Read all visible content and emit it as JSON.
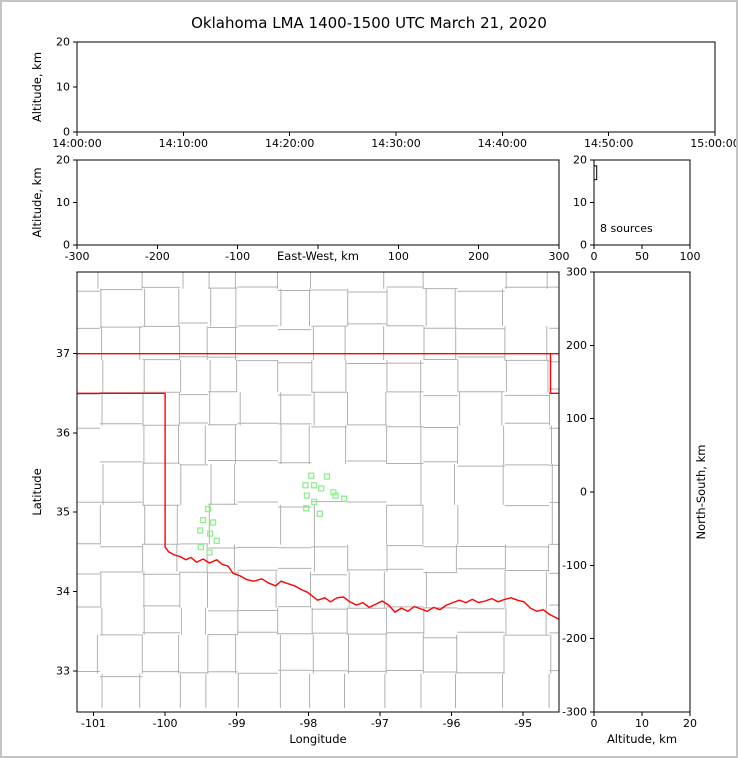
{
  "title": "Oklahoma LMA 1400-1500 UTC March 21, 2020",
  "colors": {
    "axis": "#000000",
    "state_border": "#ff0000",
    "county_line": "#b0b0b0",
    "station_marker": "#90ee90",
    "figure_border": "#c4c4c4",
    "background": "#ffffff"
  },
  "chart_data": [
    {
      "id": "time_height",
      "type": "scatter",
      "ylabel": "Altitude, km",
      "xlim": [
        0,
        3600
      ],
      "ylim": [
        0,
        20
      ],
      "xticks": [
        0,
        600,
        1200,
        1800,
        2400,
        3000,
        3600
      ],
      "xtick_labels": [
        "14:00:00",
        "14:10:00",
        "14:20:00",
        "14:30:00",
        "14:40:00",
        "14:50:00",
        "15:00:00"
      ],
      "yticks": [
        0,
        10,
        20
      ],
      "ytick_labels": [
        "0",
        "10",
        "20"
      ],
      "points": []
    },
    {
      "id": "ew_height",
      "type": "scatter",
      "xlabel": "East-West, km",
      "xlabel_inline_at": 0,
      "ylabel": "Altitude, km",
      "xlim": [
        -300,
        300
      ],
      "ylim": [
        0,
        20
      ],
      "xticks": [
        -300,
        -200,
        -100,
        0,
        100,
        200,
        300
      ],
      "xtick_labels": [
        "-300",
        "-200",
        "-100",
        "",
        "100",
        "200",
        "300"
      ],
      "yticks": [
        0,
        10,
        20
      ],
      "ytick_labels": [
        "0",
        "10",
        "20"
      ],
      "points": []
    },
    {
      "id": "alt_histogram",
      "type": "line",
      "annotation": "8 sources",
      "xlim": [
        0,
        100
      ],
      "ylim": [
        0,
        20
      ],
      "xticks": [
        0,
        50,
        100
      ],
      "xtick_labels": [
        "0",
        "50",
        "100"
      ],
      "yticks": [
        0,
        10,
        20
      ],
      "ytick_labels": [
        "0",
        "10",
        "20"
      ],
      "histogram_profile": [
        [
          0,
          18.6
        ],
        [
          2.8,
          18.6
        ],
        [
          2.8,
          15.4
        ],
        [
          0,
          15.4
        ]
      ]
    },
    {
      "id": "plan_view",
      "type": "scatter",
      "xlabel": "Longitude",
      "ylabel": "Latitude",
      "xlim": [
        -101.23,
        -94.5
      ],
      "ylim": [
        32.48,
        38.03
      ],
      "xticks": [
        -101,
        -100,
        -99,
        -98,
        -97,
        -96,
        -95
      ],
      "xtick_labels": [
        "-101",
        "-100",
        "-99",
        "-98",
        "-97",
        "-96",
        "-95"
      ],
      "yticks": [
        33,
        34,
        35,
        36,
        37
      ],
      "ytick_labels": [
        "33",
        "34",
        "35",
        "36",
        "37"
      ],
      "stations": [
        [
          -99.4,
          35.04
        ],
        [
          -99.47,
          34.9
        ],
        [
          -99.33,
          34.87
        ],
        [
          -99.51,
          34.77
        ],
        [
          -99.37,
          34.73
        ],
        [
          -99.28,
          34.64
        ],
        [
          -99.5,
          34.56
        ],
        [
          -99.38,
          34.49
        ],
        [
          -97.96,
          35.46
        ],
        [
          -97.74,
          35.45
        ],
        [
          -98.04,
          35.34
        ],
        [
          -97.92,
          35.34
        ],
        [
          -97.82,
          35.3
        ],
        [
          -97.65,
          35.25
        ],
        [
          -98.02,
          35.21
        ],
        [
          -97.62,
          35.21
        ],
        [
          -97.5,
          35.17
        ],
        [
          -97.92,
          35.13
        ],
        [
          -98.03,
          35.05
        ],
        [
          -97.84,
          34.98
        ]
      ],
      "state_border_segments": [
        [
          [
            -101.23,
            37.0
          ],
          [
            -94.5,
            37.0
          ]
        ],
        [
          [
            -94.618,
            37.0
          ],
          [
            -94.618,
            36.5
          ],
          [
            -94.5,
            36.5
          ]
        ],
        [
          [
            -101.23,
            36.5
          ],
          [
            -100.0,
            36.5
          ],
          [
            -100.0,
            34.56
          ],
          [
            -99.95,
            34.5
          ],
          [
            -99.87,
            34.46
          ],
          [
            -99.79,
            34.44
          ],
          [
            -99.71,
            34.4
          ],
          [
            -99.64,
            34.43
          ],
          [
            -99.56,
            34.37
          ],
          [
            -99.47,
            34.41
          ],
          [
            -99.38,
            34.36
          ],
          [
            -99.28,
            34.4
          ],
          [
            -99.2,
            34.34
          ],
          [
            -99.12,
            34.32
          ],
          [
            -99.05,
            34.23
          ],
          [
            -98.96,
            34.2
          ],
          [
            -98.86,
            34.15
          ],
          [
            -98.76,
            34.13
          ],
          [
            -98.65,
            34.16
          ],
          [
            -98.56,
            34.11
          ],
          [
            -98.46,
            34.07
          ],
          [
            -98.38,
            34.13
          ],
          [
            -98.29,
            34.1
          ],
          [
            -98.19,
            34.07
          ],
          [
            -98.09,
            34.02
          ],
          [
            -98.01,
            33.99
          ],
          [
            -97.94,
            33.94
          ],
          [
            -97.87,
            33.89
          ],
          [
            -97.77,
            33.92
          ],
          [
            -97.69,
            33.87
          ],
          [
            -97.6,
            33.92
          ],
          [
            -97.51,
            33.93
          ],
          [
            -97.42,
            33.87
          ],
          [
            -97.33,
            33.83
          ],
          [
            -97.24,
            33.86
          ],
          [
            -97.15,
            33.8
          ],
          [
            -97.06,
            33.84
          ],
          [
            -96.97,
            33.88
          ],
          [
            -96.88,
            33.83
          ],
          [
            -96.79,
            33.74
          ],
          [
            -96.7,
            33.79
          ],
          [
            -96.61,
            33.75
          ],
          [
            -96.52,
            33.81
          ],
          [
            -96.43,
            33.78
          ],
          [
            -96.34,
            33.75
          ],
          [
            -96.25,
            33.8
          ],
          [
            -96.16,
            33.77
          ],
          [
            -96.07,
            33.83
          ],
          [
            -95.98,
            33.86
          ],
          [
            -95.89,
            33.89
          ],
          [
            -95.8,
            33.86
          ],
          [
            -95.71,
            33.9
          ],
          [
            -95.62,
            33.86
          ],
          [
            -95.53,
            33.88
          ],
          [
            -95.44,
            33.91
          ],
          [
            -95.35,
            33.87
          ],
          [
            -95.26,
            33.9
          ],
          [
            -95.17,
            33.92
          ],
          [
            -95.08,
            33.89
          ],
          [
            -94.99,
            33.87
          ],
          [
            -94.9,
            33.79
          ],
          [
            -94.81,
            33.75
          ],
          [
            -94.72,
            33.77
          ],
          [
            -94.63,
            33.71
          ],
          [
            -94.54,
            33.67
          ],
          [
            -94.48,
            33.64
          ]
        ]
      ]
    },
    {
      "id": "ns_height",
      "type": "scatter",
      "xlabel": "Altitude, km",
      "ylabel": "North-South, km",
      "ylabel_side": "right",
      "xlim": [
        0,
        20
      ],
      "ylim": [
        -300,
        300
      ],
      "xticks": [
        0,
        10,
        20
      ],
      "xtick_labels": [
        "0",
        "10",
        "20"
      ],
      "yticks": [
        -300,
        -200,
        -100,
        0,
        100,
        200,
        300
      ],
      "ytick_labels": [
        "-300",
        "-200",
        "-100",
        "0",
        "100",
        "200",
        "300"
      ],
      "points": []
    }
  ]
}
